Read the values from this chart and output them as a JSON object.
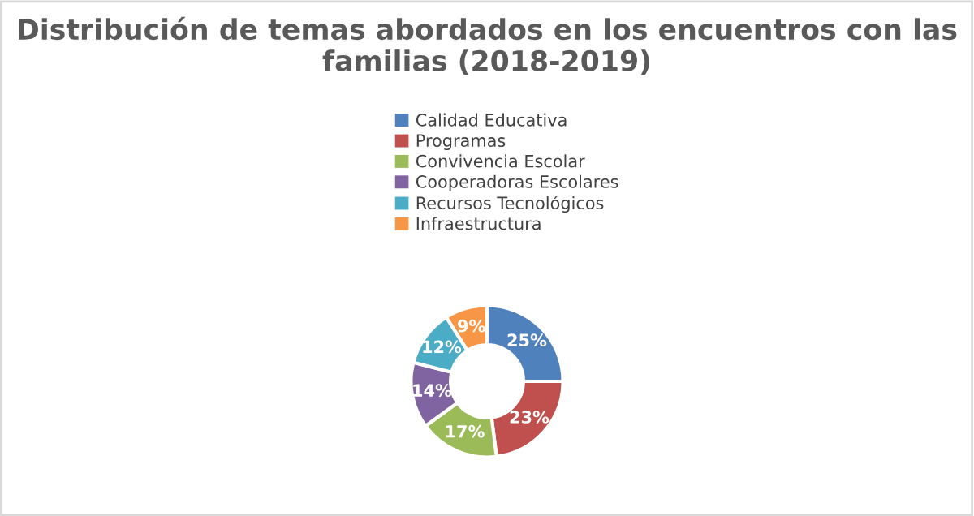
{
  "chart_data": {
    "type": "donut",
    "title": "Distribución de temas abordados en los encuentros con las familias (2018-2019)",
    "categories": [
      "Calidad Educativa",
      "Programas",
      "Convivencia Escolar",
      "Cooperadoras Escolares",
      "Recursos Tecnológicos",
      "Infraestructura"
    ],
    "values": [
      25,
      23,
      17,
      14,
      12,
      9
    ],
    "colors": [
      "#4f81bd",
      "#c0504d",
      "#9bbb59",
      "#8064a2",
      "#4bacc6",
      "#f79646"
    ],
    "value_labels": [
      "25%",
      "23%",
      "17%",
      "14%",
      "12%",
      "9%"
    ],
    "legend": "top"
  }
}
